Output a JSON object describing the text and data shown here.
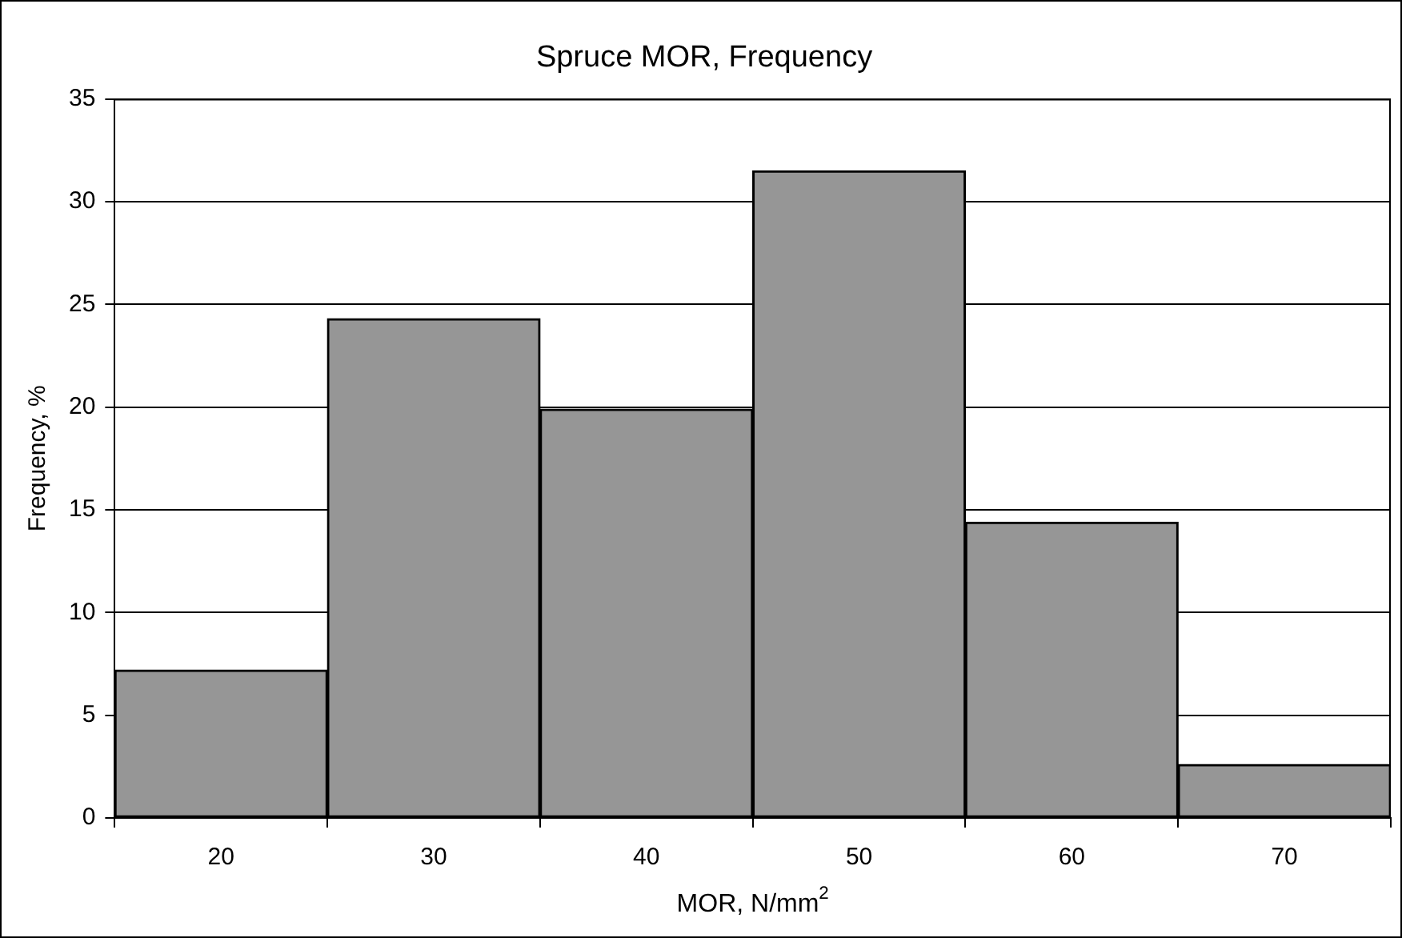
{
  "chart_data": {
    "type": "bar",
    "title": "Spruce MOR, Frequency",
    "xlabel": "MOR, N/mm$^{2}$",
    "ylabel": "Frequency, %",
    "categories": [
      "20",
      "30",
      "40",
      "50",
      "60",
      "70"
    ],
    "values": [
      7.2,
      24.3,
      19.9,
      31.5,
      14.4,
      2.6
    ],
    "color": "#969696",
    "ylim": [
      0,
      35
    ],
    "yticks": [
      0,
      5,
      10,
      15,
      20,
      25,
      30,
      35
    ],
    "grid": "y",
    "legend": false
  }
}
